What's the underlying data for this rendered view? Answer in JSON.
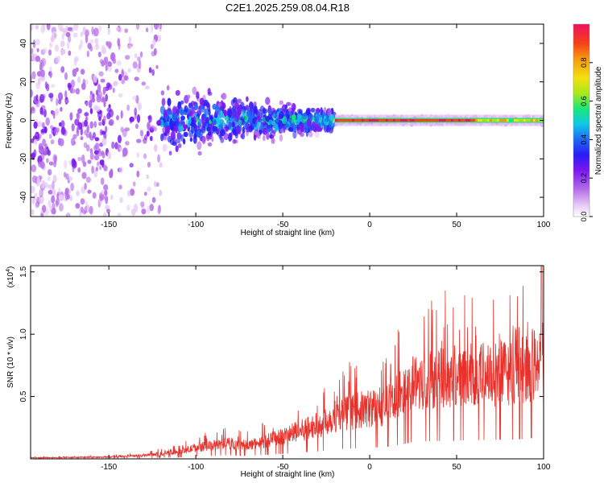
{
  "title": "C2E1.2025.259.08.04.R18",
  "colors": {
    "snr_line": "#e8312b",
    "axis": "#000000",
    "colorbar": [
      "#ffffff",
      "#e6c9f5",
      "#b56ee8",
      "#7a18f0",
      "#2a1cf5",
      "#1e6af5",
      "#10c8e8",
      "#18e878",
      "#a8e81a",
      "#f5e010",
      "#f59a10",
      "#f54018",
      "#f01060"
    ]
  },
  "chart_data": [
    {
      "type": "heatmap",
      "name": "spectrogram",
      "xlabel": "Height of straight line (km)",
      "ylabel": "Frequency (Hz)",
      "xlim": [
        -195,
        100
      ],
      "ylim": [
        -50,
        50
      ],
      "xticks": [
        -150,
        -100,
        -50,
        0,
        50,
        100
      ],
      "yticks": [
        -40,
        -20,
        0,
        20,
        40
      ],
      "colorbar": {
        "label": "Normalized spectral amplitude",
        "range": [
          0,
          1
        ],
        "ticks": [
          "0.0",
          "0.2",
          "0.4",
          "0.6",
          "0.8"
        ]
      },
      "description_values": {
        "narrowband_center_hz": 0,
        "narrowband_from_km": -20,
        "spread_region_from_km": -195,
        "spread_region_to_km": -30
      }
    },
    {
      "type": "line",
      "name": "snr",
      "xlabel": "Height of straight line (km)",
      "ylabel": "SNR (10 * v/v)",
      "scale_label": "(x10",
      "scale_exp": "4",
      "scale_close": ")",
      "xlim": [
        -195,
        100
      ],
      "ylim": [
        0,
        1.55
      ],
      "xticks": [
        -150,
        -100,
        -50,
        0,
        50,
        100
      ],
      "yticks": [
        "0.5",
        "1.0",
        "1.5"
      ],
      "yticks_values": [
        0.5,
        1.0,
        1.5
      ],
      "envelope_x": [
        -195,
        -150,
        -130,
        -110,
        -100,
        -90,
        -80,
        -70,
        -60,
        -50,
        -40,
        -30,
        -20,
        -10,
        0,
        10,
        20,
        25,
        30,
        40,
        50,
        60,
        70,
        80,
        90,
        95,
        98,
        99,
        100
      ],
      "envelope_y": [
        0.01,
        0.015,
        0.03,
        0.06,
        0.1,
        0.12,
        0.14,
        0.12,
        0.16,
        0.2,
        0.25,
        0.3,
        0.38,
        0.42,
        0.45,
        0.48,
        0.6,
        0.68,
        0.7,
        0.72,
        0.74,
        0.75,
        0.76,
        0.77,
        0.8,
        0.85,
        0.9,
        1.55,
        0.3
      ]
    }
  ]
}
